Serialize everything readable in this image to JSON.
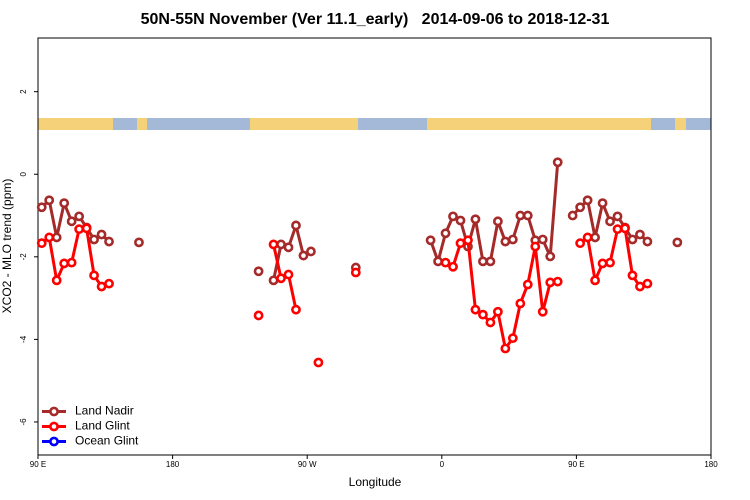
{
  "chart_data": {
    "type": "line",
    "title": "50N-55N November (Ver 11.1_early)   2014-09-06 to 2018-12-31",
    "x_label": "Longitude",
    "y_label": "XCO2 - MLO trend (ppm)",
    "xlim": [
      90,
      540
    ],
    "xticks": [
      {
        "value": 90,
        "label": "90 E"
      },
      180,
      {
        "value": 270,
        "label": "90 W"
      },
      {
        "value": 360,
        "label": "0"
      },
      {
        "value": 450,
        "label": "90 E"
      },
      {
        "value": 540,
        "label": "180"
      }
    ],
    "ylim": [
      -6.8,
      3.3
    ],
    "yticks": [
      -6,
      -4,
      -2,
      0,
      2
    ],
    "legend": "bottomleft",
    "series": [
      {
        "name": "Land Nadir",
        "color": "#a52a2a",
        "x": [
          92.5,
          97.5,
          102.5,
          107.5,
          112.5,
          117.5,
          122.5,
          127.5,
          132.5,
          137.5,
          142.5,
          157.5,
          162.5,
          237.5,
          242.5,
          247.5,
          252.5,
          257.5,
          262.5,
          267.5,
          272.5,
          277.5,
          302.5,
          307.5,
          352.5,
          357.5,
          362.5,
          367.5,
          372.5,
          377.5,
          382.5,
          387.5,
          392.5,
          397.5,
          402.5,
          407.5,
          412.5,
          417.5,
          422.5,
          427.5,
          432.5,
          437.5,
          442.5,
          447.5,
          452.5,
          457.5,
          462.5,
          467.5,
          472.5,
          477.5,
          482.5,
          487.5,
          492.5,
          497.5,
          502.5,
          517.5
        ],
        "values": [
          -0.8,
          -0.63,
          -1.53,
          -0.7,
          -1.14,
          -1.02,
          -1.29,
          -1.58,
          -1.46,
          -1.63,
          null,
          -1.65,
          null,
          -2.35,
          null,
          -2.57,
          -1.7,
          -1.77,
          -1.24,
          -1.97,
          -1.87,
          null,
          -2.26,
          null,
          -1.6,
          -2.11,
          -1.43,
          -1.02,
          -1.12,
          -1.75,
          -1.09,
          -2.11,
          -2.11,
          -1.14,
          -1.63,
          -1.58,
          -1.0,
          -1.0,
          -1.6,
          -1.58,
          -1.99,
          0.29,
          null,
          -1.0,
          -0.8,
          -0.63,
          -1.53,
          -0.7,
          -1.14,
          -1.02,
          -1.29,
          -1.58,
          -1.46,
          -1.63,
          null,
          -1.65
        ]
      },
      {
        "name": "Land Glint",
        "color": "#ff0000",
        "x": [
          92.5,
          97.5,
          102.5,
          107.5,
          112.5,
          117.5,
          122.5,
          127.5,
          132.5,
          137.5,
          142.5,
          237.5,
          242.5,
          247.5,
          252.5,
          257.5,
          262.5,
          267.5,
          277.5,
          282.5,
          302.5,
          307.5,
          362.5,
          367.5,
          372.5,
          377.5,
          382.5,
          387.5,
          392.5,
          397.5,
          402.5,
          407.5,
          412.5,
          417.5,
          422.5,
          427.5,
          432.5,
          437.5,
          442.5,
          452.5,
          457.5,
          462.5,
          467.5,
          472.5,
          477.5,
          482.5,
          487.5,
          492.5,
          497.5
        ],
        "values": [
          -1.67,
          -1.53,
          -2.57,
          -2.16,
          -2.14,
          -1.33,
          -1.31,
          -2.45,
          -2.72,
          -2.65,
          null,
          -3.42,
          null,
          -1.7,
          -2.52,
          -2.43,
          -3.28,
          null,
          -4.56,
          null,
          -2.38,
          null,
          -2.14,
          -2.24,
          -1.67,
          -1.6,
          -3.28,
          -3.4,
          -3.59,
          -3.33,
          -4.22,
          -3.97,
          -3.13,
          -2.67,
          -1.75,
          -3.33,
          -2.62,
          -2.6,
          null,
          -1.67,
          -1.53,
          -2.57,
          -2.16,
          -2.14,
          -1.33,
          -1.31,
          -2.45,
          -2.72,
          -2.65
        ]
      },
      {
        "name": "Ocean Glint",
        "color": "#0000ff",
        "x": [],
        "values": []
      }
    ]
  }
}
